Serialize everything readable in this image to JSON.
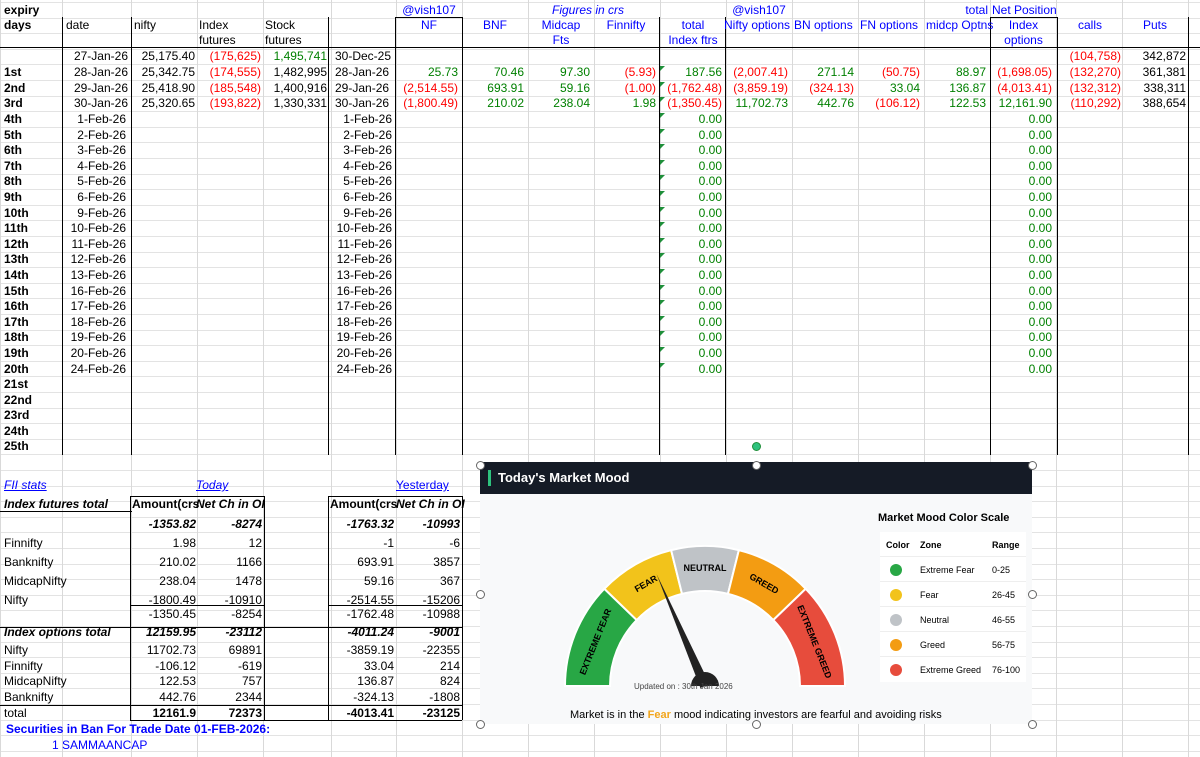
{
  "header": {
    "expiry_days": [
      "expiry",
      "days"
    ],
    "date": "date",
    "nifty": "nifty",
    "index_futures": [
      "Index",
      "futures"
    ],
    "stock_futures": [
      "Stock",
      "futures"
    ],
    "handle1": "@vish107",
    "nf": "NF",
    "bnf": "BNF",
    "figures": "Figures in crs",
    "midcap_fts": [
      "Midcap",
      "Fts"
    ],
    "finnifty": "Finnifty",
    "total_index": [
      "total",
      "Index ftrs"
    ],
    "handle2": "@vish107",
    "nifty_options": "Nifty options",
    "bn_options": "BN options",
    "fn_options": "FN options",
    "total2": "total",
    "midcp_optns": "midcp Optns",
    "net_position": "Net Position",
    "index_options": [
      "Index",
      "options"
    ],
    "calls": "calls",
    "puts": "Puts"
  },
  "row0": {
    "date": "27-Jan-26",
    "nifty": "25,175.40",
    "index_fut": "(175,625)",
    "stock_fut": "1,495,741",
    "date2": "30-Dec-25",
    "calls": "(104,758)",
    "puts": "342,872"
  },
  "top_rows": [
    {
      "day": "1st",
      "date": "28-Jan-26",
      "nifty": "25,342.75",
      "index_fut": "(174,555)",
      "stock_fut": "1,482,995",
      "date2": "28-Jan-26",
      "nf": "25.73",
      "bnf": "70.46",
      "midcap": "97.30",
      "finnifty": "(5.93)",
      "total": "187.56",
      "nifty_opt": "(2,007.41)",
      "bn_opt": "271.14",
      "fn_opt": "(50.75)",
      "midcp_opt": "88.97",
      "index_opt": "(1,698.05)",
      "calls": "(132,270)",
      "puts": "361,381"
    },
    {
      "day": "2nd",
      "date": "29-Jan-26",
      "nifty": "25,418.90",
      "index_fut": "(185,548)",
      "stock_fut": "1,400,916",
      "date2": "29-Jan-26",
      "nf": "(2,514.55)",
      "bnf": "693.91",
      "midcap": "59.16",
      "finnifty": "(1.00)",
      "total": "(1,762.48)",
      "nifty_opt": "(3,859.19)",
      "bn_opt": "(324.13)",
      "fn_opt": "33.04",
      "midcp_opt": "136.87",
      "index_opt": "(4,013.41)",
      "calls": "(132,312)",
      "puts": "338,311"
    },
    {
      "day": "3rd",
      "date": "30-Jan-26",
      "nifty": "25,320.65",
      "index_fut": "(193,822)",
      "stock_fut": "1,330,331",
      "date2": "30-Jan-26",
      "nf": "(1,800.49)",
      "bnf": "210.02",
      "midcap": "238.04",
      "finnifty": "1.98",
      "total": "(1,350.45)",
      "nifty_opt": "11,702.73",
      "bn_opt": "442.76",
      "fn_opt": "(106.12)",
      "midcp_opt": "122.53",
      "index_opt": "12,161.90",
      "calls": "(110,292)",
      "puts": "388,654"
    }
  ],
  "future_rows": [
    {
      "day": "4th",
      "date": "1-Feb-26",
      "total": "0.00",
      "index_opt": "0.00"
    },
    {
      "day": "5th",
      "date": "2-Feb-26",
      "total": "0.00",
      "index_opt": "0.00"
    },
    {
      "day": "6th",
      "date": "3-Feb-26",
      "total": "0.00",
      "index_opt": "0.00"
    },
    {
      "day": "7th",
      "date": "4-Feb-26",
      "total": "0.00",
      "index_opt": "0.00"
    },
    {
      "day": "8th",
      "date": "5-Feb-26",
      "total": "0.00",
      "index_opt": "0.00"
    },
    {
      "day": "9th",
      "date": "6-Feb-26",
      "total": "0.00",
      "index_opt": "0.00"
    },
    {
      "day": "10th",
      "date": "9-Feb-26",
      "total": "0.00",
      "index_opt": "0.00"
    },
    {
      "day": "11th",
      "date": "10-Feb-26",
      "total": "0.00",
      "index_opt": "0.00"
    },
    {
      "day": "12th",
      "date": "11-Feb-26",
      "total": "0.00",
      "index_opt": "0.00"
    },
    {
      "day": "13th",
      "date": "12-Feb-26",
      "total": "0.00",
      "index_opt": "0.00"
    },
    {
      "day": "14th",
      "date": "13-Feb-26",
      "total": "0.00",
      "index_opt": "0.00"
    },
    {
      "day": "15th",
      "date": "16-Feb-26",
      "total": "0.00",
      "index_opt": "0.00"
    },
    {
      "day": "16th",
      "date": "17-Feb-26",
      "total": "0.00",
      "index_opt": "0.00"
    },
    {
      "day": "17th",
      "date": "18-Feb-26",
      "total": "0.00",
      "index_opt": "0.00"
    },
    {
      "day": "18th",
      "date": "19-Feb-26",
      "total": "0.00",
      "index_opt": "0.00"
    },
    {
      "day": "19th",
      "date": "20-Feb-26",
      "total": "0.00",
      "index_opt": "0.00"
    },
    {
      "day": "20th",
      "date": "24-Feb-26",
      "total": "0.00",
      "index_opt": "0.00"
    }
  ],
  "empty_days": [
    "21st",
    "22nd",
    "23rd",
    "24th",
    "25th"
  ],
  "fii": {
    "title": "FII stats",
    "today": "Today",
    "yesterday": "Yesterday",
    "amount_hdr": "Amount(crs",
    "netch_hdr": "Net Ch in OI",
    "idx_fut_total": "Index futures total",
    "idx_fut_today": [
      "-1353.82",
      "-8274"
    ],
    "idx_fut_yest": [
      "-1763.32",
      "-10993"
    ],
    "fut_rows": [
      {
        "name": "Finnifty",
        "t_amt": "1.98",
        "t_oi": "12",
        "y_amt": "-1",
        "y_oi": "-6"
      },
      {
        "name": "Banknifty",
        "t_amt": "210.02",
        "t_oi": "1166",
        "y_amt": "693.91",
        "y_oi": "3857"
      },
      {
        "name": "MidcapNifty",
        "t_amt": "238.04",
        "t_oi": "1478",
        "y_amt": "59.16",
        "y_oi": "367"
      },
      {
        "name": "Nifty",
        "t_amt": "-1800.49",
        "t_oi": "-10910",
        "y_amt": "-2514.55",
        "y_oi": "-15206"
      }
    ],
    "fut_sum": {
      "t_amt": "-1350.45",
      "t_oi": "-8254",
      "y_amt": "-1762.48",
      "y_oi": "-10988"
    },
    "idx_opt_total": "Index options total",
    "idx_opt_today": [
      "12159.95",
      "-23112"
    ],
    "idx_opt_yest": [
      "-4011.24",
      "-9001"
    ],
    "opt_rows": [
      {
        "name": "Nifty",
        "t_amt": "11702.73",
        "t_oi": "69891",
        "y_amt": "-3859.19",
        "y_oi": "-22355"
      },
      {
        "name": "Finnifty",
        "t_amt": "-106.12",
        "t_oi": "-619",
        "y_amt": "33.04",
        "y_oi": "214"
      },
      {
        "name": "MidcapNifty",
        "t_amt": "122.53",
        "t_oi": "757",
        "y_amt": "136.87",
        "y_oi": "824"
      },
      {
        "name": "Banknifty",
        "t_amt": "442.76",
        "t_oi": "2344",
        "y_amt": "-324.13",
        "y_oi": "-1808"
      }
    ],
    "opt_sum": {
      "name": "total",
      "t_amt": "12161.9",
      "t_oi": "72373",
      "y_amt": "-4013.41",
      "y_oi": "-23125"
    },
    "ban_title": "Securities in Ban For Trade Date 01-FEB-2026:",
    "ban_item": "1 SAMMAANCAP"
  },
  "mood": {
    "title": "Today's Market Mood",
    "zones": [
      "EXTREME FEAR",
      "FEAR",
      "NEUTRAL",
      "GREED",
      "EXTREME GREED"
    ],
    "updated": "Updated on : 30th Jan 2026",
    "msg_pre": "Market is in the ",
    "msg_word": "Fear",
    "msg_post": " mood indicating investors are fearful and avoiding risks",
    "needle_value": 37,
    "scale_title": "Market Mood Color Scale",
    "scale_headers": [
      "Color",
      "Zone",
      "Range"
    ],
    "scale_rows": [
      {
        "zone": "Extreme Fear",
        "range": "0-25",
        "color": "#28a745"
      },
      {
        "zone": "Fear",
        "range": "26-45",
        "color": "#f2c31b"
      },
      {
        "zone": "Neutral",
        "range": "46-55",
        "color": "#bfc3c7"
      },
      {
        "zone": "Greed",
        "range": "56-75",
        "color": "#f39c12"
      },
      {
        "zone": "Extreme Greed",
        "range": "76-100",
        "color": "#e74c3c"
      }
    ]
  }
}
